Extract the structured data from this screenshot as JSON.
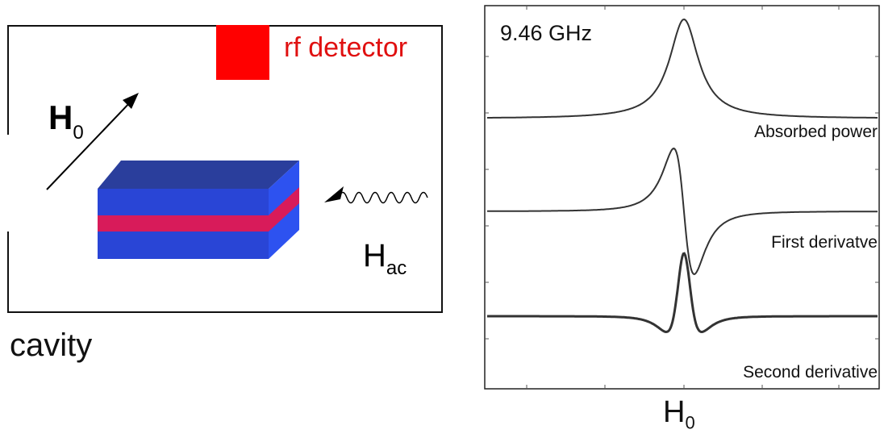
{
  "diagram": {
    "detector_label": "rf detector",
    "field_label": "H",
    "field_sub": "0",
    "ac_label": "H",
    "ac_sub": "ac",
    "cavity_label": "cavity",
    "colors": {
      "detector": "#ff0000",
      "block_top": "#2a3e9c",
      "block_front": "#2945d6",
      "block_side": "#2d52f0",
      "film": "#d81b5a",
      "line": "#000000"
    }
  },
  "plot": {
    "frequency_label": "9.46 GHz",
    "x_label": "H",
    "x_sub": "0",
    "curves": [
      {
        "name": "Absorbed power",
        "kind": "absorption"
      },
      {
        "name": "First derivatve",
        "kind": "first-derivative"
      },
      {
        "name": "Second derivative",
        "kind": "second-derivative"
      }
    ]
  }
}
